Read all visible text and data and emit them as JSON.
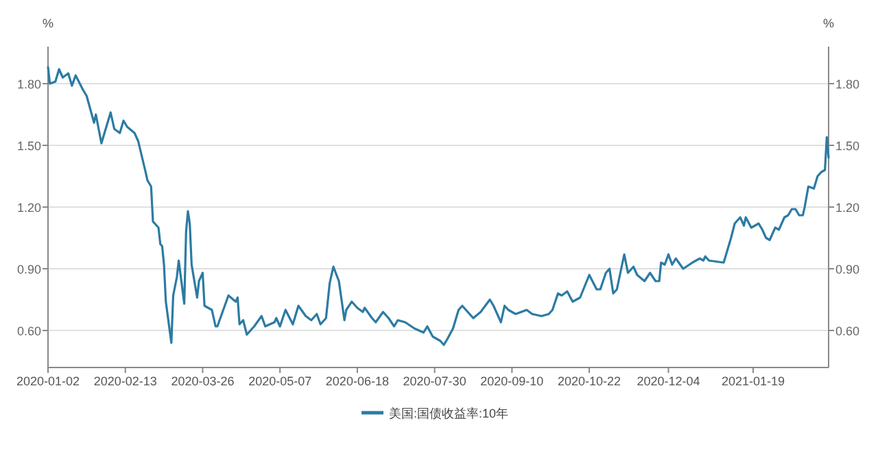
{
  "chart_data": {
    "type": "line",
    "ylabel": "%",
    "y2label": "%",
    "grid": "y",
    "legend": "bottom",
    "marker": "none",
    "line_style": "solid",
    "xlim": [
      "2020-01-02",
      "2021-03-01"
    ],
    "xticks": [
      "2020-01-02",
      "2020-02-13",
      "2020-03-26",
      "2020-05-07",
      "2020-06-18",
      "2020-07-30",
      "2020-09-10",
      "2020-10-22",
      "2020-12-04",
      "2021-01-19"
    ],
    "ylim": [
      0.42,
      1.98
    ],
    "yticks": [
      {
        "value": 0.6,
        "label": "0.60"
      },
      {
        "value": 0.9,
        "label": "0.90"
      },
      {
        "value": 1.2,
        "label": "1.20"
      },
      {
        "value": 1.5,
        "label": "1.50"
      },
      {
        "value": 1.8,
        "label": "1.80"
      }
    ],
    "y2lim": [
      0.42,
      1.98
    ],
    "y2ticks": [
      {
        "value": 0.6,
        "label": "0.60"
      },
      {
        "value": 0.9,
        "label": "0.90"
      },
      {
        "value": 1.2,
        "label": "1.20"
      },
      {
        "value": 1.5,
        "label": "1.50"
      },
      {
        "value": 1.8,
        "label": "1.80"
      }
    ],
    "series": [
      {
        "name": "美国:国债收益率:10年",
        "color": "#2b7ba3",
        "x": [
          "2020-01-02",
          "2020-01-03",
          "2020-01-06",
          "2020-01-08",
          "2020-01-10",
          "2020-01-13",
          "2020-01-15",
          "2020-01-17",
          "2020-01-21",
          "2020-01-23",
          "2020-01-27",
          "2020-01-28",
          "2020-01-31",
          "2020-02-05",
          "2020-02-07",
          "2020-02-10",
          "2020-02-12",
          "2020-02-14",
          "2020-02-18",
          "2020-02-20",
          "2020-02-24",
          "2020-02-25",
          "2020-02-27",
          "2020-02-28",
          "2020-03-02",
          "2020-03-03",
          "2020-03-04",
          "2020-03-05",
          "2020-03-06",
          "2020-03-09",
          "2020-03-10",
          "2020-03-12",
          "2020-03-13",
          "2020-03-16",
          "2020-03-17",
          "2020-03-18",
          "2020-03-19",
          "2020-03-20",
          "2020-03-23",
          "2020-03-24",
          "2020-03-26",
          "2020-03-27",
          "2020-03-31",
          "2020-04-02",
          "2020-04-03",
          "2020-04-07",
          "2020-04-09",
          "2020-04-13",
          "2020-04-14",
          "2020-04-15",
          "2020-04-17",
          "2020-04-19",
          "2020-04-23",
          "2020-04-27",
          "2020-04-29",
          "2020-05-04",
          "2020-05-05",
          "2020-05-07",
          "2020-05-10",
          "2020-05-14",
          "2020-05-17",
          "2020-05-21",
          "2020-05-24",
          "2020-05-27",
          "2020-05-29",
          "2020-06-01",
          "2020-06-03",
          "2020-06-05",
          "2020-06-08",
          "2020-06-11",
          "2020-06-12",
          "2020-06-15",
          "2020-06-18",
          "2020-06-21",
          "2020-06-22",
          "2020-06-26",
          "2020-06-28",
          "2020-07-02",
          "2020-07-05",
          "2020-07-08",
          "2020-07-10",
          "2020-07-14",
          "2020-07-19",
          "2020-07-24",
          "2020-07-26",
          "2020-07-29",
          "2020-08-02",
          "2020-08-04",
          "2020-08-06",
          "2020-08-09",
          "2020-08-12",
          "2020-08-14",
          "2020-08-17",
          "2020-08-20",
          "2020-08-24",
          "2020-08-29",
          "2020-08-31",
          "2020-09-04",
          "2020-09-06",
          "2020-09-08",
          "2020-09-12",
          "2020-09-18",
          "2020-09-21",
          "2020-09-26",
          "2020-09-30",
          "2020-10-02",
          "2020-10-05",
          "2020-10-07",
          "2020-10-10",
          "2020-10-13",
          "2020-10-17",
          "2020-10-22",
          "2020-10-26",
          "2020-10-28",
          "2020-10-31",
          "2020-11-02",
          "2020-11-04",
          "2020-11-06",
          "2020-11-10",
          "2020-11-12",
          "2020-11-15",
          "2020-11-17",
          "2020-11-21",
          "2020-11-24",
          "2020-11-27",
          "2020-11-29",
          "2020-11-30",
          "2020-12-02",
          "2020-12-04",
          "2020-12-06",
          "2020-12-08",
          "2020-12-12",
          "2020-12-17",
          "2020-12-21",
          "2020-12-23",
          "2020-12-24",
          "2020-12-26",
          "2021-01-03",
          "2021-01-07",
          "2021-01-09",
          "2021-01-12",
          "2021-01-14",
          "2021-01-15",
          "2021-01-18",
          "2021-01-22",
          "2021-01-24",
          "2021-01-26",
          "2021-01-28",
          "2021-01-31",
          "2021-02-02",
          "2021-02-05",
          "2021-02-07",
          "2021-02-09",
          "2021-02-11",
          "2021-02-13",
          "2021-02-15",
          "2021-02-16",
          "2021-02-18",
          "2021-02-21",
          "2021-02-23",
          "2021-02-25",
          "2021-02-27",
          "2021-02-28",
          "2021-03-01"
        ],
        "values": [
          1.88,
          1.8,
          1.81,
          1.87,
          1.83,
          1.85,
          1.79,
          1.84,
          1.77,
          1.74,
          1.61,
          1.65,
          1.51,
          1.66,
          1.58,
          1.56,
          1.62,
          1.59,
          1.56,
          1.52,
          1.37,
          1.33,
          1.3,
          1.13,
          1.1,
          1.02,
          1.01,
          0.92,
          0.74,
          0.54,
          0.77,
          0.86,
          0.94,
          0.73,
          1.08,
          1.18,
          1.12,
          0.92,
          0.76,
          0.84,
          0.88,
          0.72,
          0.7,
          0.62,
          0.62,
          0.72,
          0.77,
          0.74,
          0.76,
          0.63,
          0.65,
          0.58,
          0.62,
          0.67,
          0.62,
          0.64,
          0.66,
          0.62,
          0.7,
          0.63,
          0.72,
          0.67,
          0.65,
          0.68,
          0.63,
          0.66,
          0.83,
          0.91,
          0.84,
          0.65,
          0.7,
          0.74,
          0.71,
          0.69,
          0.71,
          0.66,
          0.64,
          0.69,
          0.66,
          0.62,
          0.65,
          0.64,
          0.61,
          0.59,
          0.62,
          0.57,
          0.55,
          0.53,
          0.56,
          0.61,
          0.7,
          0.72,
          0.69,
          0.66,
          0.69,
          0.75,
          0.72,
          0.64,
          0.72,
          0.7,
          0.68,
          0.7,
          0.68,
          0.67,
          0.68,
          0.7,
          0.78,
          0.77,
          0.79,
          0.74,
          0.76,
          0.87,
          0.8,
          0.8,
          0.88,
          0.9,
          0.78,
          0.8,
          0.97,
          0.88,
          0.91,
          0.87,
          0.84,
          0.88,
          0.84,
          0.84,
          0.93,
          0.92,
          0.97,
          0.92,
          0.95,
          0.9,
          0.93,
          0.95,
          0.94,
          0.96,
          0.94,
          0.93,
          1.05,
          1.12,
          1.15,
          1.11,
          1.15,
          1.1,
          1.12,
          1.09,
          1.05,
          1.04,
          1.1,
          1.09,
          1.15,
          1.16,
          1.19,
          1.19,
          1.16,
          1.16,
          1.2,
          1.3,
          1.29,
          1.35,
          1.37,
          1.38,
          1.54,
          1.44
        ]
      }
    ]
  }
}
